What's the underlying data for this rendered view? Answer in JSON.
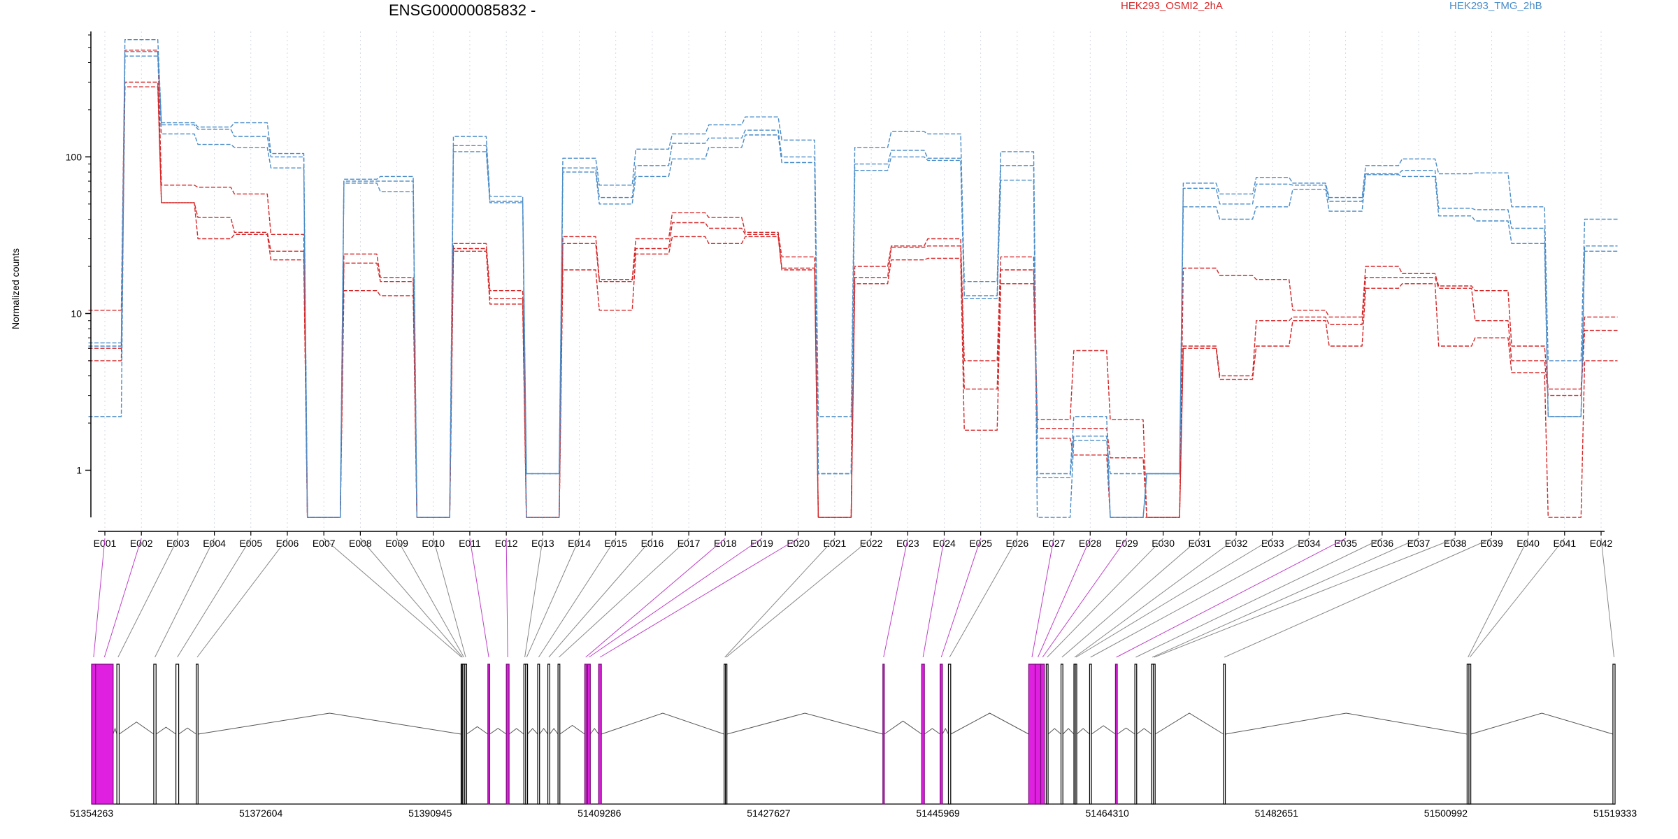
{
  "chart_data": {
    "type": "line",
    "title": "ENSG00000085832 -",
    "ylabel": "Normalized counts",
    "yscale": "log",
    "yticks": [
      "1",
      "10",
      "100"
    ],
    "ylim": [
      0.5,
      600
    ],
    "categories": [
      "E001",
      "E002",
      "E003",
      "E004",
      "E005",
      "E006",
      "E007",
      "E008",
      "E009",
      "E010",
      "E011",
      "E012",
      "E013",
      "E014",
      "E015",
      "E016",
      "E017",
      "E018",
      "E019",
      "E020",
      "E021",
      "E022",
      "E023",
      "E024",
      "E025",
      "E026",
      "E027",
      "E028",
      "E029",
      "E030",
      "E031",
      "E032",
      "E033",
      "E034",
      "E035",
      "E036",
      "E037",
      "E038",
      "E039",
      "E040",
      "E041",
      "E042"
    ],
    "series": [
      {
        "name": "HEK293_OSMI2_2hA",
        "color": "#d62728",
        "replicates": [
          [
            10.5,
            480,
            66,
            64,
            58,
            32,
            0.5,
            24,
            17,
            0.5,
            28,
            14,
            0.5,
            31,
            16.5,
            30,
            44,
            41,
            33,
            23,
            0.5,
            20,
            27,
            30,
            5,
            23,
            2.1,
            5.8,
            2.1,
            0.5,
            19.5,
            17.5,
            16.5,
            10.5,
            9.5,
            20,
            18,
            15,
            14,
            6.2,
            3.3,
            9.5
          ],
          [
            6.0,
            300,
            51,
            41,
            33,
            25,
            0.5,
            21,
            16,
            0.5,
            26,
            12.5,
            0.5,
            28,
            16,
            26,
            38,
            35,
            32,
            19.5,
            0.5,
            17,
            26.5,
            27,
            3.3,
            19,
            1.85,
            1.85,
            1.2,
            0.5,
            6.2,
            4.0,
            9.0,
            9.5,
            8.5,
            17,
            17,
            14.5,
            9,
            5,
            3.0,
            7.8
          ],
          [
            5.0,
            280,
            51,
            30,
            32,
            22,
            0.5,
            14,
            13,
            0.5,
            25,
            11.5,
            0.5,
            19,
            10.5,
            24,
            31,
            28,
            31,
            19,
            0.5,
            15.5,
            22,
            22.5,
            1.8,
            15.5,
            1.6,
            1.25,
            0.5,
            0.5,
            6.0,
            3.8,
            6.2,
            9.0,
            6.2,
            14.5,
            15.5,
            6.2,
            7,
            4.2,
            0.5,
            5
          ]
        ]
      },
      {
        "name": "HEK293_TMG_2hB",
        "color": "#4a8cc8",
        "replicates": [
          [
            6.5,
            560,
            165,
            155,
            165,
            105,
            0.5,
            72,
            75,
            0.5,
            135,
            56,
            0.95,
            98,
            66,
            112,
            140,
            160,
            180,
            128,
            2.2,
            115,
            145,
            140,
            16,
            108,
            0.95,
            2.2,
            0.5,
            0.95,
            68,
            58,
            74,
            68,
            55,
            88,
            97,
            78,
            79,
            48,
            5,
            40
          ],
          [
            6.2,
            470,
            160,
            150,
            135,
            100,
            0.5,
            70,
            70,
            0.5,
            118,
            52,
            0.95,
            85,
            55,
            88,
            122,
            132,
            148,
            100,
            0.95,
            90,
            110,
            98,
            13,
            88,
            0.9,
            1.65,
            0.5,
            0.95,
            63,
            50,
            67,
            66,
            52,
            78,
            82,
            47,
            46,
            35,
            2.2,
            27
          ],
          [
            2.2,
            440,
            140,
            120,
            115,
            85,
            0.5,
            68,
            60,
            0.5,
            108,
            51,
            0.5,
            80,
            50,
            75,
            97,
            115,
            138,
            92,
            0.95,
            82,
            100,
            95,
            12.5,
            71,
            0.5,
            1.55,
            0.95,
            0.95,
            48,
            40,
            48,
            62,
            45,
            77,
            75,
            42,
            39,
            28,
            2.2,
            25
          ]
        ]
      }
    ],
    "genomic_axis": {
      "ticks": [
        "51354263",
        "51372604",
        "51390945",
        "51409286",
        "51427627",
        "51445969",
        "51464310",
        "51482651",
        "51500992",
        "51519333"
      ],
      "range": [
        51354263,
        51519333
      ],
      "highlight_color": "#e020e0",
      "exons": [
        {
          "id": "E001",
          "start": 51354263,
          "end": 51354700,
          "dexseq_highlight": true
        },
        {
          "id": "E002",
          "start": 51354700,
          "end": 51356600,
          "dexseq_highlight": true
        },
        {
          "id": "E003",
          "start": 51357000,
          "end": 51357250,
          "dexseq_highlight": false
        },
        {
          "id": "E004",
          "start": 51361000,
          "end": 51361250,
          "dexseq_highlight": false
        },
        {
          "id": "E005",
          "start": 51363400,
          "end": 51363700,
          "dexseq_highlight": false
        },
        {
          "id": "E006",
          "start": 51365600,
          "end": 51365800,
          "dexseq_highlight": false
        },
        {
          "id": "E007",
          "start": 51394300,
          "end": 51394400,
          "dexseq_highlight": false
        },
        {
          "id": "E008",
          "start": 51394400,
          "end": 51394500,
          "dexseq_highlight": false
        },
        {
          "id": "E009",
          "start": 51394500,
          "end": 51394700,
          "dexseq_highlight": false
        },
        {
          "id": "E010",
          "start": 51394700,
          "end": 51394900,
          "dexseq_highlight": false
        },
        {
          "id": "E011",
          "start": 51397200,
          "end": 51397400,
          "dexseq_highlight": true
        },
        {
          "id": "E012",
          "start": 51399200,
          "end": 51399500,
          "dexseq_highlight": true
        },
        {
          "id": "E013",
          "start": 51401100,
          "end": 51401300,
          "dexseq_highlight": false
        },
        {
          "id": "E014",
          "start": 51401300,
          "end": 51401500,
          "dexseq_highlight": false
        },
        {
          "id": "E015",
          "start": 51402600,
          "end": 51402800,
          "dexseq_highlight": false
        },
        {
          "id": "E016",
          "start": 51403700,
          "end": 51403900,
          "dexseq_highlight": false
        },
        {
          "id": "E017",
          "start": 51404800,
          "end": 51405000,
          "dexseq_highlight": false
        },
        {
          "id": "E018",
          "start": 51407700,
          "end": 51407900,
          "dexseq_highlight": true
        },
        {
          "id": "E019",
          "start": 51408000,
          "end": 51408300,
          "dexseq_highlight": true
        },
        {
          "id": "E020",
          "start": 51409200,
          "end": 51409500,
          "dexseq_highlight": true
        },
        {
          "id": "E021",
          "start": 51422800,
          "end": 51422950,
          "dexseq_highlight": false
        },
        {
          "id": "E022",
          "start": 51422950,
          "end": 51423100,
          "dexseq_highlight": false
        },
        {
          "id": "E023",
          "start": 51440000,
          "end": 51440150,
          "dexseq_highlight": true
        },
        {
          "id": "E024",
          "start": 51444200,
          "end": 51444500,
          "dexseq_highlight": true
        },
        {
          "id": "E025",
          "start": 51446200,
          "end": 51446450,
          "dexseq_highlight": true
        },
        {
          "id": "E026",
          "start": 51447100,
          "end": 51447350,
          "dexseq_highlight": false
        },
        {
          "id": "E027",
          "start": 51455800,
          "end": 51456500,
          "dexseq_highlight": true
        },
        {
          "id": "E028",
          "start": 51456500,
          "end": 51457100,
          "dexseq_highlight": true
        },
        {
          "id": "E029",
          "start": 51457100,
          "end": 51457500,
          "dexseq_highlight": true
        },
        {
          "id": "E030",
          "start": 51457700,
          "end": 51457900,
          "dexseq_highlight": false
        },
        {
          "id": "E031",
          "start": 51459300,
          "end": 51459500,
          "dexseq_highlight": false
        },
        {
          "id": "E032",
          "start": 51460700,
          "end": 51460850,
          "dexseq_highlight": false
        },
        {
          "id": "E033",
          "start": 51460850,
          "end": 51461000,
          "dexseq_highlight": false
        },
        {
          "id": "E034",
          "start": 51462400,
          "end": 51462600,
          "dexseq_highlight": false
        },
        {
          "id": "E035",
          "start": 51465200,
          "end": 51465400,
          "dexseq_highlight": true
        },
        {
          "id": "E036",
          "start": 51467300,
          "end": 51467500,
          "dexseq_highlight": false
        },
        {
          "id": "E037",
          "start": 51469100,
          "end": 51469300,
          "dexseq_highlight": false
        },
        {
          "id": "E038",
          "start": 51469300,
          "end": 51469500,
          "dexseq_highlight": false
        },
        {
          "id": "E039",
          "start": 51476900,
          "end": 51477100,
          "dexseq_highlight": false
        },
        {
          "id": "E040",
          "start": 51503300,
          "end": 51503500,
          "dexseq_highlight": false
        },
        {
          "id": "E041",
          "start": 51503500,
          "end": 51503700,
          "dexseq_highlight": false
        },
        {
          "id": "E042",
          "start": 51519100,
          "end": 51519333,
          "dexseq_highlight": false
        }
      ]
    }
  }
}
